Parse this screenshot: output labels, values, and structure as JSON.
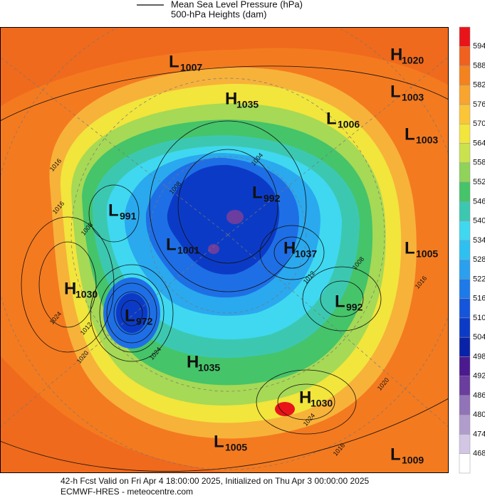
{
  "legend": [
    "Mean Sea Level Pressure (hPa)",
    "500-hPa Heights (dam)"
  ],
  "colorbar": {
    "labels": [
      594,
      588,
      582,
      576,
      570,
      564,
      558,
      552,
      546,
      540,
      534,
      528,
      522,
      516,
      510,
      504,
      498,
      492,
      486,
      480,
      474,
      468
    ],
    "colors": [
      "#e8141a",
      "#f0601e",
      "#f4821f",
      "#f7a52e",
      "#fbc538",
      "#f2e53c",
      "#c9e24e",
      "#8fd35a",
      "#45c46a",
      "#3cc8b0",
      "#3fd8f0",
      "#2fc0f2",
      "#2aa0ef",
      "#1e7ae8",
      "#1455dc",
      "#0b3bc6",
      "#0a22a8",
      "#4b1a8f",
      "#6b3d9e",
      "#9173b8",
      "#b19dcc",
      "#d3c6e4",
      "#ffffff"
    ]
  },
  "centers": [
    {
      "kind": "L",
      "value": 1007
    },
    {
      "kind": "H",
      "value": 1020
    },
    {
      "kind": "H",
      "value": 1035
    },
    {
      "kind": "L",
      "value": 1003
    },
    {
      "kind": "L",
      "value": 1006
    },
    {
      "kind": "L",
      "value": 1003
    },
    {
      "kind": "L",
      "value": 992
    },
    {
      "kind": "L",
      "value": 991
    },
    {
      "kind": "L",
      "value": 1001
    },
    {
      "kind": "H",
      "value": 1037
    },
    {
      "kind": "L",
      "value": 1005
    },
    {
      "kind": "H",
      "value": 1030
    },
    {
      "kind": "L",
      "value": 992
    },
    {
      "kind": "L",
      "value": 972
    },
    {
      "kind": "H",
      "value": 1035
    },
    {
      "kind": "H",
      "value": 1030
    },
    {
      "kind": "L",
      "value": 1005
    },
    {
      "kind": "L",
      "value": 1009
    }
  ],
  "contour_labels": [
    1016,
    1008,
    1016,
    1024,
    1012,
    1020,
    1024,
    1004,
    1008,
    1012,
    1008,
    1016,
    1020,
    1024,
    1016
  ],
  "footer": [
    "42-h Fcst Valid on Fri Apr  4 18:00:00 2025, Initialized on Thu Apr  3 00:00:00 2025",
    "ECMWF-HRES - meteocentre.com"
  ]
}
